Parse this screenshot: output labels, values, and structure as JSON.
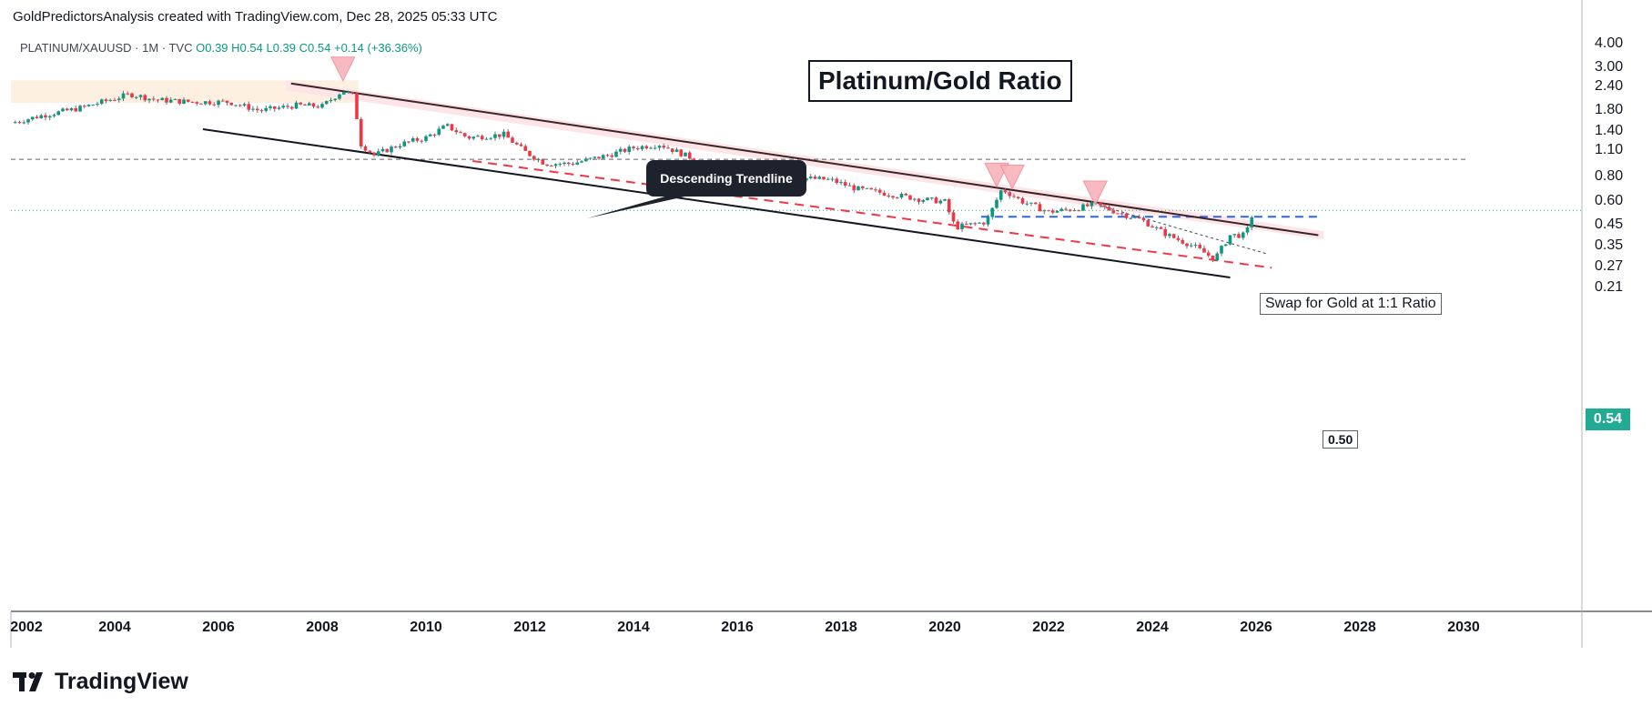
{
  "header": {
    "credit": "GoldPredictorsAnalysis created with TradingView.com, Dec 28, 2025 05:33 UTC"
  },
  "legend": {
    "symbol": "PLATINUM/XAUUSD · 1M · TVC",
    "open": "O0.39",
    "high": "H0.54",
    "low": "L0.39",
    "close": "C0.54",
    "change": "+0.14 (+36.36%)"
  },
  "footer": {
    "brand": "TradingView",
    "logo_icon": "tradingview-logo-icon"
  },
  "colors": {
    "up": "#089981",
    "down": "#f23645",
    "current_price": "#22ab94",
    "resistance_zone": "#fde4e7",
    "top_zone": "#fdf0e0",
    "red_dashed": "#f23645",
    "blue_dashed": "#2962ff"
  },
  "chart_data": {
    "type": "candlestick",
    "title": "Platinum/Gold Ratio",
    "scale": "log",
    "ylim": [
      0.2,
      4.0
    ],
    "xlim": [
      2002,
      2031.5
    ],
    "y_ticks": [
      "4.00",
      "3.00",
      "2.40",
      "1.80",
      "1.40",
      "1.10",
      "0.80",
      "0.60",
      "0.45",
      "0.35",
      "0.27",
      "0.21"
    ],
    "x_ticks": [
      "2002",
      "2004",
      "2006",
      "2008",
      "2010",
      "2012",
      "2014",
      "2016",
      "2018",
      "2020",
      "2022",
      "2024",
      "2026",
      "2028",
      "2030"
    ],
    "last_price": "0.54",
    "price_path": [
      [
        2002.0,
        1.55
      ],
      [
        2002.6,
        1.7
      ],
      [
        2003.3,
        1.85
      ],
      [
        2003.9,
        2.05
      ],
      [
        2004.3,
        2.2
      ],
      [
        2004.8,
        2.05
      ],
      [
        2005.5,
        2.0
      ],
      [
        2006.2,
        2.0
      ],
      [
        2006.8,
        1.8
      ],
      [
        2007.5,
        1.92
      ],
      [
        2008.0,
        1.9
      ],
      [
        2008.4,
        2.3
      ],
      [
        2008.6,
        2.15
      ],
      [
        2008.75,
        1.2
      ],
      [
        2009.0,
        1.05
      ],
      [
        2009.5,
        1.2
      ],
      [
        2010.0,
        1.3
      ],
      [
        2010.4,
        1.5
      ],
      [
        2010.8,
        1.3
      ],
      [
        2011.5,
        1.35
      ],
      [
        2011.9,
        1.1
      ],
      [
        2012.3,
        0.95
      ],
      [
        2012.8,
        0.95
      ],
      [
        2013.5,
        1.05
      ],
      [
        2014.0,
        1.15
      ],
      [
        2014.5,
        1.2
      ],
      [
        2015.0,
        1.05
      ],
      [
        2015.6,
        0.9
      ],
      [
        2016.0,
        0.8
      ],
      [
        2016.6,
        0.8
      ],
      [
        2017.2,
        0.8
      ],
      [
        2017.8,
        0.78
      ],
      [
        2018.3,
        0.7
      ],
      [
        2018.9,
        0.66
      ],
      [
        2019.5,
        0.62
      ],
      [
        2020.0,
        0.6
      ],
      [
        2020.2,
        0.44
      ],
      [
        2020.8,
        0.47
      ],
      [
        2021.1,
        0.7
      ],
      [
        2021.5,
        0.6
      ],
      [
        2022.0,
        0.53
      ],
      [
        2022.5,
        0.55
      ],
      [
        2022.9,
        0.58
      ],
      [
        2023.3,
        0.53
      ],
      [
        2023.8,
        0.48
      ],
      [
        2024.3,
        0.4
      ],
      [
        2024.8,
        0.35
      ],
      [
        2025.2,
        0.3
      ],
      [
        2025.5,
        0.4
      ],
      [
        2025.8,
        0.4
      ],
      [
        2025.95,
        0.54
      ]
    ],
    "trendlines": [
      {
        "name": "Descending Trendline",
        "from": [
          2007.4,
          2.5
        ],
        "to": [
          2027.2,
          0.4
        ]
      },
      {
        "from": [
          2005.7,
          1.44
        ],
        "to": [
          2025.5,
          0.24
        ]
      },
      {
        "from": [
          2010.9,
          0.98
        ],
        "to": [
          2026.3,
          0.27
        ],
        "style": "dashed"
      },
      {
        "from": [
          2023.0,
          0.57
        ],
        "to": [
          2026.2,
          0.32
        ],
        "style": "dotted"
      }
    ],
    "resistance_zone": {
      "x": [
        2007.3,
        2027.3
      ],
      "y_top": [
        2.6,
        0.42
      ],
      "y_bottom": [
        2.3,
        0.38
      ]
    },
    "top_zone": {
      "x": [
        2002.0,
        2008.7
      ],
      "y": [
        1.98,
        2.6
      ]
    },
    "levels": [
      {
        "value": 1.0,
        "label": "Swap for Gold at 1:1 Ratio"
      },
      {
        "value": 0.5,
        "label": "0.50",
        "from_x": 2020.7
      }
    ],
    "pullback_markers": [
      {
        "x": 2008.4,
        "y": 2.95
      },
      {
        "x": 2021.0,
        "y": 0.82
      },
      {
        "x": 2021.3,
        "y": 0.8
      },
      {
        "x": 2022.9,
        "y": 0.66
      }
    ],
    "annotations": [
      "Descending Trendline",
      "Swap for Gold at 1:1 Ratio",
      "0.50"
    ]
  }
}
